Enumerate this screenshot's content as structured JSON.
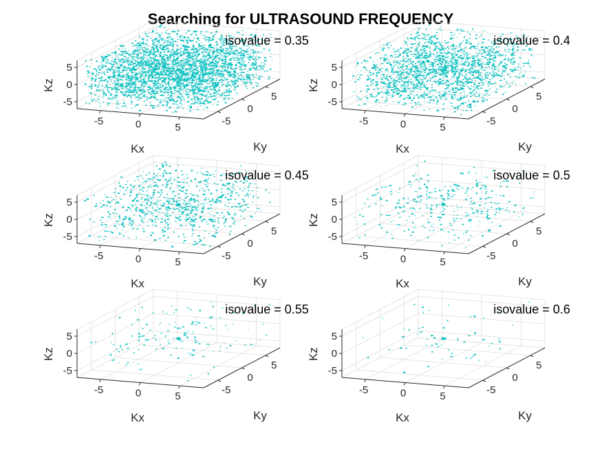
{
  "figure_title": "Searching for ULTRASOUND FREQUENCY",
  "chart_data": [
    {
      "type": "scatter3d",
      "title": "isovalue = 0.35",
      "isovalue": 0.35,
      "density": 0.95,
      "xlabel": "Kx",
      "ylabel": "Ky",
      "zlabel": "Kz",
      "xlim": [
        -8,
        8
      ],
      "ylim": [
        -8,
        8
      ],
      "zlim": [
        -7,
        7
      ],
      "xticks": [
        -5,
        0,
        5
      ],
      "yticks": [
        -5,
        0,
        5
      ],
      "zticks": [
        -5,
        0,
        5
      ],
      "color": "#12c2c2"
    },
    {
      "type": "scatter3d",
      "title": "isovalue = 0.4",
      "isovalue": 0.4,
      "density": 0.55,
      "xlabel": "Kx",
      "ylabel": "Ky",
      "zlabel": "Kz",
      "xlim": [
        -8,
        8
      ],
      "ylim": [
        -8,
        8
      ],
      "zlim": [
        -7,
        7
      ],
      "xticks": [
        -5,
        0,
        5
      ],
      "yticks": [
        -5,
        0,
        5
      ],
      "zticks": [
        -5,
        0,
        5
      ],
      "color": "#12c2c2"
    },
    {
      "type": "scatter3d",
      "title": "isovalue = 0.45",
      "isovalue": 0.45,
      "density": 0.25,
      "xlabel": "Kx",
      "ylabel": "Ky",
      "zlabel": "Kz",
      "xlim": [
        -8,
        8
      ],
      "ylim": [
        -8,
        8
      ],
      "zlim": [
        -7,
        7
      ],
      "xticks": [
        -5,
        0,
        5
      ],
      "yticks": [
        -5,
        0,
        5
      ],
      "zticks": [
        -5,
        0,
        5
      ],
      "color": "#12c2c2"
    },
    {
      "type": "scatter3d",
      "title": "isovalue = 0.5",
      "isovalue": 0.5,
      "density": 0.1,
      "xlabel": "Kx",
      "ylabel": "Ky",
      "zlabel": "Kz",
      "xlim": [
        -8,
        8
      ],
      "ylim": [
        -8,
        8
      ],
      "zlim": [
        -7,
        7
      ],
      "xticks": [
        -5,
        0,
        5
      ],
      "yticks": [
        -5,
        0,
        5
      ],
      "zticks": [
        -5,
        0,
        5
      ],
      "color": "#12c2c2"
    },
    {
      "type": "scatter3d",
      "title": "isovalue = 0.55",
      "isovalue": 0.55,
      "density": 0.04,
      "xlabel": "Kx",
      "ylabel": "Ky",
      "zlabel": "Kz",
      "xlim": [
        -8,
        8
      ],
      "ylim": [
        -8,
        8
      ],
      "zlim": [
        -7,
        7
      ],
      "xticks": [
        -5,
        0,
        5
      ],
      "yticks": [
        -5,
        0,
        5
      ],
      "zticks": [
        -5,
        0,
        5
      ],
      "color": "#12c2c2"
    },
    {
      "type": "scatter3d",
      "title": "isovalue = 0.6",
      "isovalue": 0.6,
      "density": 0.015,
      "xlabel": "Kx",
      "ylabel": "Ky",
      "zlabel": "Kz",
      "xlim": [
        -8,
        8
      ],
      "ylim": [
        -8,
        8
      ],
      "zlim": [
        -7,
        7
      ],
      "xticks": [
        -5,
        0,
        5
      ],
      "yticks": [
        -5,
        0,
        5
      ],
      "zticks": [
        -5,
        0,
        5
      ],
      "color": "#12c2c2"
    }
  ]
}
